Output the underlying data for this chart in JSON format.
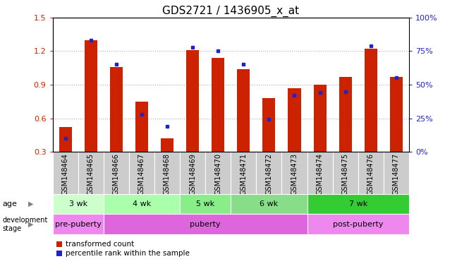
{
  "title": "GDS2721 / 1436905_x_at",
  "samples": [
    "GSM148464",
    "GSM148465",
    "GSM148466",
    "GSM148467",
    "GSM148468",
    "GSM148469",
    "GSM148470",
    "GSM148471",
    "GSM148472",
    "GSM148473",
    "GSM148474",
    "GSM148475",
    "GSM148476",
    "GSM148477"
  ],
  "transformed_count": [
    0.52,
    1.3,
    1.06,
    0.75,
    0.42,
    1.21,
    1.14,
    1.04,
    0.78,
    0.87,
    0.9,
    0.97,
    1.22,
    0.97
  ],
  "percentile_rank_pct": [
    10,
    83,
    65,
    28,
    19,
    78,
    75,
    65,
    24,
    42,
    44,
    45,
    79,
    55
  ],
  "ylim_left": [
    0.3,
    1.5
  ],
  "ylim_right": [
    0,
    100
  ],
  "yticks_left": [
    0.3,
    0.6,
    0.9,
    1.2,
    1.5
  ],
  "yticks_right": [
    0,
    25,
    50,
    75,
    100
  ],
  "age_groups": [
    {
      "label": "3 wk",
      "start": 0,
      "end": 2
    },
    {
      "label": "4 wk",
      "start": 2,
      "end": 5
    },
    {
      "label": "5 wk",
      "start": 5,
      "end": 7
    },
    {
      "label": "6 wk",
      "start": 7,
      "end": 10
    },
    {
      "label": "7 wk",
      "start": 10,
      "end": 14
    }
  ],
  "dev_groups": [
    {
      "label": "pre-puberty",
      "start": 0,
      "end": 2
    },
    {
      "label": "puberty",
      "start": 2,
      "end": 10
    },
    {
      "label": "post-puberty",
      "start": 10,
      "end": 14
    }
  ],
  "age_colors": [
    "#ccffcc",
    "#aaffaa",
    "#88ee88",
    "#88dd88",
    "#33cc33"
  ],
  "dev_colors": [
    "#ee88ee",
    "#dd66dd",
    "#ee88ee"
  ],
  "bar_color_red": "#cc2200",
  "bar_color_blue": "#2222cc",
  "tick_label_fontsize": 7,
  "title_fontsize": 11,
  "left_tick_color": "#cc2200",
  "right_tick_color": "#2222cc",
  "xtick_bg_color": "#cccccc",
  "xtick_border_color": "#888888"
}
